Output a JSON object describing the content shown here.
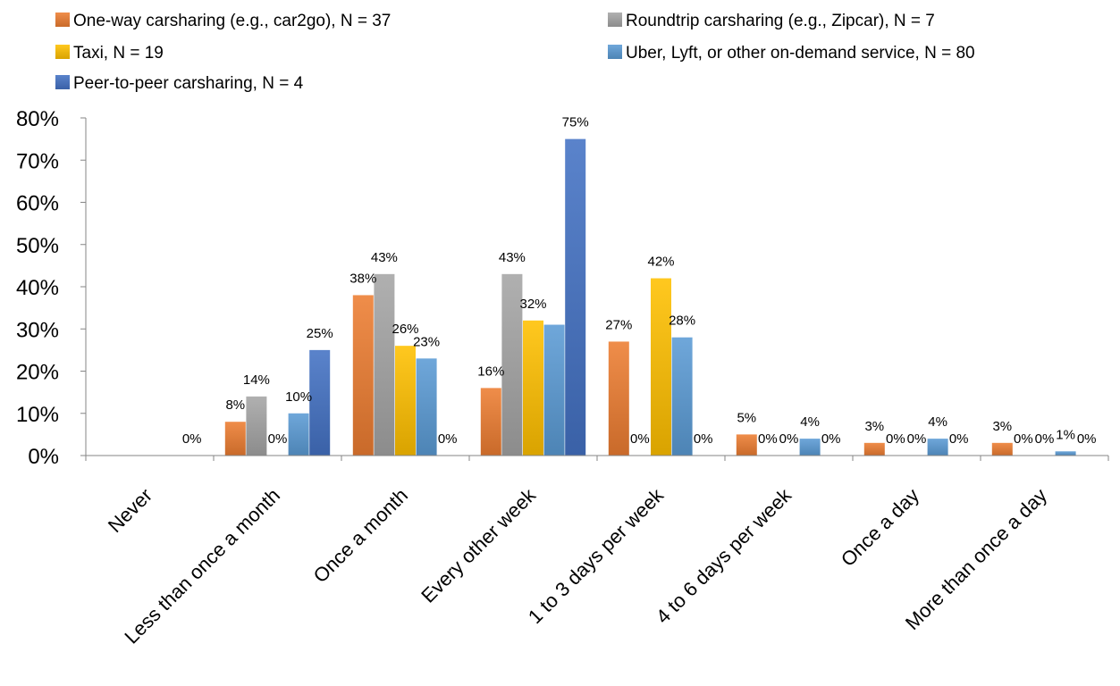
{
  "chart_data": {
    "type": "bar",
    "title": "",
    "xlabel": "",
    "ylabel": "",
    "ylim": [
      0,
      80
    ],
    "yticks": [
      "0%",
      "10%",
      "20%",
      "30%",
      "40%",
      "50%",
      "60%",
      "70%",
      "80%"
    ],
    "categories": [
      "Never",
      "Less than once a month",
      "Once a month",
      "Every other week",
      "1 to 3 days per week",
      "4 to 6 days per week",
      "Once a day",
      "More than once a day"
    ],
    "legend_position": "top",
    "grid": false,
    "series": [
      {
        "name": "One-way carsharing (e.g., car2go), N = 37",
        "color": "#ED7D31",
        "values": [
          null,
          8,
          38,
          16,
          27,
          5,
          3,
          3
        ],
        "labels": [
          "",
          "8%",
          "38%",
          "16%",
          "27%",
          "5%",
          "3%",
          "3%"
        ]
      },
      {
        "name": "Roundtrip carsharing (e.g., Zipcar), N = 7",
        "color": "#A5A5A5",
        "values": [
          null,
          14,
          43,
          43,
          0,
          0,
          0,
          0
        ],
        "labels": [
          "",
          "14%",
          "43%",
          "43%",
          "0%",
          "0%",
          "0%",
          "0%"
        ]
      },
      {
        "name": "Taxi, N = 19",
        "color": "#FFC000",
        "values": [
          null,
          0,
          26,
          32,
          42,
          0,
          0,
          0
        ],
        "labels": [
          "",
          "0%",
          "26%",
          "32%",
          "42%",
          "0%",
          "0%",
          "0%"
        ]
      },
      {
        "name": "Uber, Lyft, or other on-demand service, N = 80",
        "color": "#5B9BD5",
        "values": [
          null,
          10,
          23,
          31,
          28,
          4,
          4,
          1
        ],
        "labels": [
          "",
          "10%",
          "23%",
          "",
          "28%",
          "4%",
          "4%",
          "1%"
        ]
      },
      {
        "name": "Peer-to-peer carsharing, N = 4",
        "color": "#4472C4",
        "values": [
          0,
          25,
          0,
          75,
          0,
          0,
          0,
          0
        ],
        "labels": [
          "0%",
          "25%",
          "0%",
          "75%",
          "0%",
          "0%",
          "0%",
          "0%"
        ]
      }
    ]
  }
}
